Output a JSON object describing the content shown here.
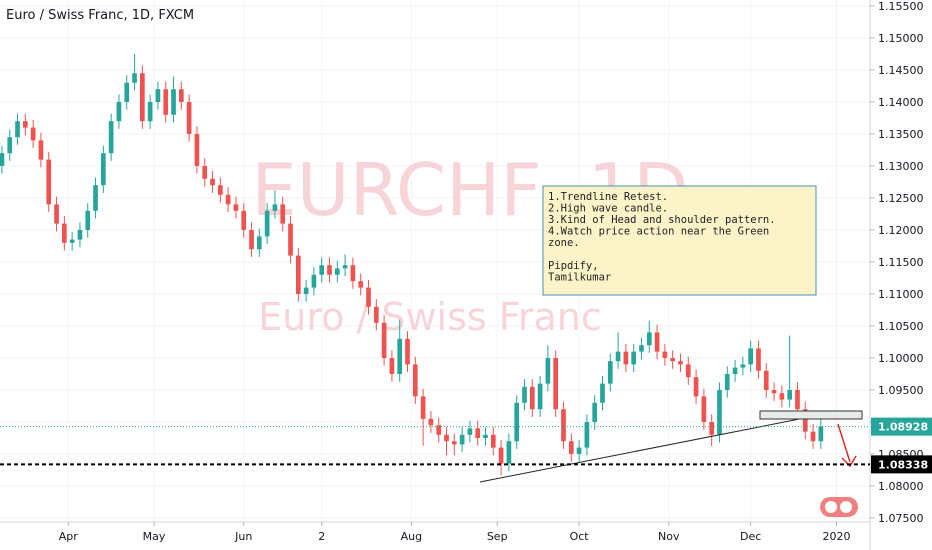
{
  "chart_data": {
    "type": "candlestick",
    "title": "Euro / Swiss Franc, 1D, FXCM",
    "watermark": [
      "EURCHF, 1D",
      "Euro / Swiss Franc"
    ],
    "up_color": "#26a69a",
    "down_color": "#ef5350",
    "grid": true,
    "xlim": [
      -0.5,
      222.6
    ],
    "ylim": [
      1.075,
      1.155
    ],
    "xticks": [
      {
        "value": 17,
        "label": "Apr"
      },
      {
        "value": 39,
        "label": "May"
      },
      {
        "value": 62,
        "label": "Jun"
      },
      {
        "value": 82,
        "label": "2"
      },
      {
        "value": 105,
        "label": "Aug"
      },
      {
        "value": 127,
        "label": "Sep"
      },
      {
        "value": 148,
        "label": "Oct"
      },
      {
        "value": 171,
        "label": "Nov"
      },
      {
        "value": 192,
        "label": "Dec"
      },
      {
        "value": 214,
        "label": "2020"
      }
    ],
    "yticks": [
      {
        "value": 1.075,
        "label": "1.07500"
      },
      {
        "value": 1.08,
        "label": "1.08000"
      },
      {
        "value": 1.085,
        "label": "1.08500"
      },
      {
        "value": 1.09,
        "label": "1.09000"
      },
      {
        "value": 1.095,
        "label": "1.09500"
      },
      {
        "value": 1.1,
        "label": "1.10000"
      },
      {
        "value": 1.105,
        "label": "1.10500"
      },
      {
        "value": 1.11,
        "label": "1.11000"
      },
      {
        "value": 1.115,
        "label": "1.11500"
      },
      {
        "value": 1.12,
        "label": "1.12000"
      },
      {
        "value": 1.125,
        "label": "1.12500"
      },
      {
        "value": 1.13,
        "label": "1.13000"
      },
      {
        "value": 1.135,
        "label": "1.13500"
      },
      {
        "value": 1.14,
        "label": "1.14000"
      },
      {
        "value": 1.145,
        "label": "1.14500"
      },
      {
        "value": 1.15,
        "label": "1.15000"
      },
      {
        "value": 1.155,
        "label": "1.15500"
      }
    ],
    "last_price": {
      "value": 1.08928,
      "label": "1.08928",
      "color": "#26a69a"
    },
    "level": {
      "value": 1.08338,
      "label": "1.08338",
      "color": "#000000"
    },
    "note": [
      "1.Trendline Retest.",
      "2.High wave candle.",
      "3.Kind of Head and shoulder pattern.",
      "4.Watch price action near the Green",
      "zone.",
      "Pipdify,",
      "Tamilkumar"
    ],
    "x": [
      0,
      2,
      4,
      6,
      8,
      10,
      12,
      14,
      16,
      18,
      20,
      22,
      24,
      26,
      28,
      30,
      32,
      34,
      36,
      38,
      40,
      42,
      44,
      46,
      48,
      50,
      52,
      54,
      56,
      58,
      60,
      62,
      64,
      66,
      68,
      70,
      72,
      74,
      76,
      78,
      80,
      82,
      84,
      86,
      88,
      90,
      92,
      94,
      96,
      98,
      100,
      102,
      104,
      106,
      108,
      110,
      112,
      114,
      116,
      118,
      120,
      122,
      124,
      126,
      128,
      130,
      132,
      134,
      136,
      138,
      140,
      142,
      144,
      146,
      148,
      150,
      152,
      154,
      156,
      158,
      160,
      162,
      164,
      166,
      168,
      170,
      172,
      174,
      176,
      178,
      180,
      182,
      184,
      186,
      188,
      190,
      192,
      194,
      196,
      198,
      200,
      202,
      204,
      206,
      208,
      210
    ],
    "open": [
      1.13,
      1.132,
      1.1345,
      1.137,
      1.136,
      1.134,
      1.131,
      1.124,
      1.121,
      1.118,
      1.1185,
      1.12,
      1.123,
      1.127,
      1.132,
      1.137,
      1.14,
      1.143,
      1.1445,
      1.137,
      1.14,
      1.142,
      1.138,
      1.142,
      1.14,
      1.135,
      1.13,
      1.128,
      1.127,
      1.1255,
      1.124,
      1.123,
      1.12,
      1.117,
      1.119,
      1.123,
      1.124,
      1.121,
      1.116,
      1.11,
      1.111,
      1.113,
      1.1145,
      1.113,
      1.114,
      1.1145,
      1.112,
      1.111,
      1.108,
      1.1055,
      1.1,
      1.0975,
      1.103,
      1.099,
      1.094,
      1.0905,
      1.0895,
      1.088,
      1.087,
      1.0865,
      1.088,
      1.089,
      1.0875,
      1.088,
      1.086,
      1.0835,
      1.087,
      1.093,
      1.0955,
      1.092,
      1.096,
      1.1,
      1.092,
      1.087,
      1.085,
      1.086,
      1.09,
      1.093,
      1.096,
      1.0995,
      1.101,
      1.099,
      1.101,
      1.102,
      1.104,
      1.101,
      1.1,
      1.0995,
      1.099,
      1.097,
      1.094,
      1.09,
      1.088,
      1.095,
      1.0975,
      1.0985,
      1.099,
      1.1015,
      1.098,
      1.095,
      1.0945,
      1.0935,
      1.095,
      1.092,
      1.0885,
      1.087
    ],
    "high": [
      1.1332,
      1.1357,
      1.1382,
      1.1382,
      1.1372,
      1.1352,
      1.1322,
      1.1252,
      1.1222,
      1.1197,
      1.1212,
      1.1242,
      1.1282,
      1.1332,
      1.1382,
      1.1412,
      1.1442,
      1.1475,
      1.1457,
      1.1412,
      1.1432,
      1.1432,
      1.144,
      1.1432,
      1.1412,
      1.1362,
      1.1312,
      1.1292,
      1.1282,
      1.1267,
      1.1252,
      1.1242,
      1.1212,
      1.1202,
      1.1242,
      1.1262,
      1.1252,
      1.1222,
      1.1172,
      1.1122,
      1.1142,
      1.1157,
      1.1157,
      1.1152,
      1.1162,
      1.1157,
      1.1132,
      1.1122,
      1.1092,
      1.1067,
      1.1012,
      1.106,
      1.1042,
      1.1002,
      1.0952,
      1.0917,
      1.0907,
      1.0892,
      1.0882,
      1.0892,
      1.0902,
      1.0902,
      1.0892,
      1.0892,
      1.0872,
      1.0882,
      1.0942,
      1.0967,
      1.0967,
      1.0972,
      1.102,
      1.1012,
      1.0932,
      1.0882,
      1.0872,
      1.0912,
      1.0942,
      1.0972,
      1.1007,
      1.104,
      1.1022,
      1.1022,
      1.1032,
      1.1058,
      1.1052,
      1.1022,
      1.1012,
      1.1007,
      1.1002,
      1.0982,
      1.0952,
      1.0912,
      1.0962,
      1.0987,
      1.0997,
      1.1002,
      1.1027,
      1.1027,
      1.0992,
      1.0962,
      1.0957,
      1.1035,
      1.0962,
      1.0932,
      1.0897,
      1.0905
    ],
    "low": [
      1.1288,
      1.1308,
      1.1333,
      1.1348,
      1.1328,
      1.1298,
      1.1228,
      1.1198,
      1.1168,
      1.1168,
      1.1173,
      1.1188,
      1.1218,
      1.1258,
      1.1308,
      1.1358,
      1.1388,
      1.1418,
      1.1358,
      1.1358,
      1.1388,
      1.1368,
      1.1368,
      1.1388,
      1.1338,
      1.1288,
      1.1268,
      1.1258,
      1.1243,
      1.1228,
      1.1218,
      1.1188,
      1.1158,
      1.1158,
      1.1178,
      1.1218,
      1.1198,
      1.1148,
      1.1088,
      1.1088,
      1.1098,
      1.1118,
      1.1118,
      1.1118,
      1.1128,
      1.1108,
      1.1098,
      1.1068,
      1.1043,
      1.0988,
      1.0963,
      1.0963,
      1.0978,
      1.0928,
      1.0863,
      1.0883,
      1.0868,
      1.0848,
      1.0848,
      1.0853,
      1.0868,
      1.0863,
      1.0863,
      1.0848,
      1.0817,
      1.0823,
      1.0858,
      1.0918,
      1.0908,
      1.0908,
      1.0948,
      1.0908,
      1.0858,
      1.0838,
      1.0838,
      1.0848,
      1.0888,
      1.0918,
      1.0948,
      1.0983,
      1.0978,
      1.0978,
      1.0998,
      1.1008,
      1.0998,
      1.0988,
      1.0983,
      1.0978,
      1.0958,
      1.0928,
      1.0888,
      1.0862,
      1.0868,
      1.0938,
      1.0963,
      1.0973,
      1.0978,
      1.0968,
      1.0938,
      1.0933,
      1.0923,
      1.0923,
      1.0908,
      1.0873,
      1.0858,
      1.0858
    ],
    "close": [
      1.132,
      1.1345,
      1.137,
      1.136,
      1.134,
      1.131,
      1.124,
      1.121,
      1.118,
      1.1185,
      1.12,
      1.123,
      1.127,
      1.132,
      1.137,
      1.14,
      1.143,
      1.1445,
      1.137,
      1.14,
      1.142,
      1.138,
      1.142,
      1.14,
      1.135,
      1.13,
      1.128,
      1.127,
      1.1255,
      1.124,
      1.123,
      1.12,
      1.117,
      1.119,
      1.123,
      1.124,
      1.121,
      1.116,
      1.11,
      1.111,
      1.113,
      1.1145,
      1.113,
      1.114,
      1.1145,
      1.112,
      1.111,
      1.108,
      1.1055,
      1.1,
      1.0975,
      1.103,
      1.099,
      1.094,
      1.0905,
      1.0895,
      1.088,
      1.087,
      1.0865,
      1.088,
      1.089,
      1.0875,
      1.088,
      1.086,
      1.0835,
      1.087,
      1.093,
      1.0955,
      1.092,
      1.096,
      1.1,
      1.092,
      1.087,
      1.085,
      1.086,
      1.09,
      1.093,
      1.096,
      1.0995,
      1.101,
      1.099,
      1.101,
      1.102,
      1.104,
      1.101,
      1.1,
      1.0995,
      1.099,
      1.097,
      1.094,
      1.09,
      1.088,
      1.095,
      1.0975,
      1.0985,
      1.099,
      1.1015,
      1.098,
      1.095,
      1.0945,
      1.0935,
      1.095,
      1.092,
      1.0885,
      1.087,
      1.0893
    ]
  }
}
